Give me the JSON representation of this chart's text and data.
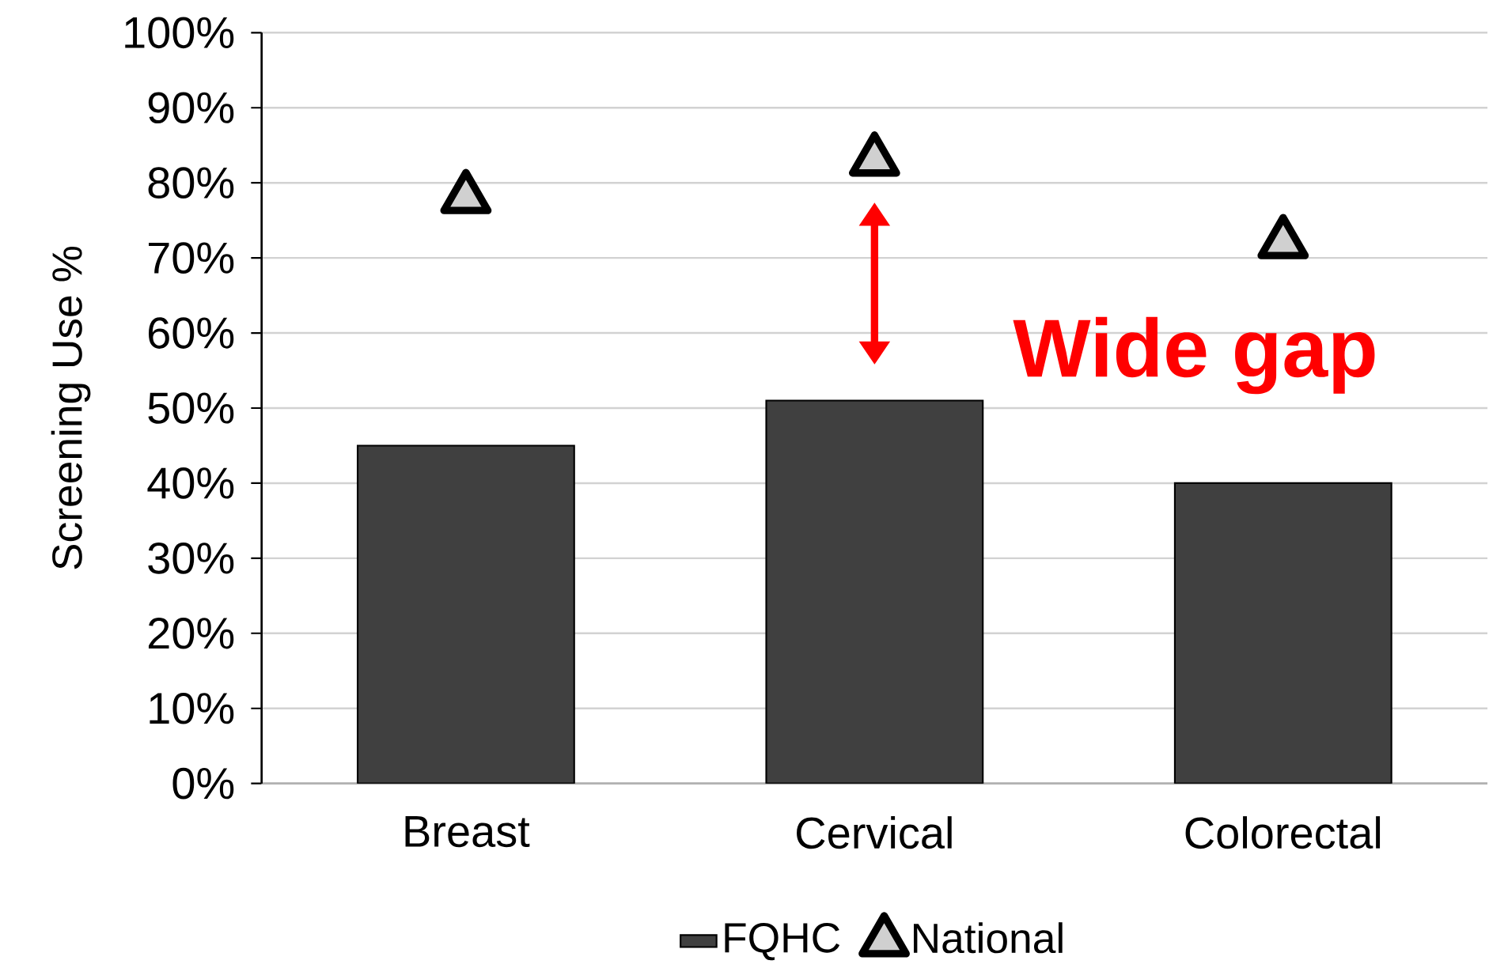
{
  "chart_data": {
    "type": "bar",
    "ylabel": "Screening Use %",
    "categories": [
      "Breast",
      "Cervical",
      "Colorectal"
    ],
    "series": [
      {
        "name": "FQHC",
        "color": "#404040",
        "values": [
          45,
          51,
          40
        ]
      },
      {
        "name": "National",
        "type": "scatter",
        "color": "#d0d0d0",
        "marker": "triangle",
        "values": [
          78,
          83,
          72
        ]
      }
    ],
    "ylim": [
      0,
      100
    ],
    "yticks": [
      {
        "value": 0,
        "label": "0%"
      },
      {
        "value": 10,
        "label": "10%"
      },
      {
        "value": 20,
        "label": "20%"
      },
      {
        "value": 30,
        "label": "30%"
      },
      {
        "value": 40,
        "label": "40%"
      },
      {
        "value": 50,
        "label": "50%"
      },
      {
        "value": 60,
        "label": "60%"
      },
      {
        "value": 70,
        "label": "70%"
      },
      {
        "value": 80,
        "label": "80%"
      },
      {
        "value": 90,
        "label": "90%"
      },
      {
        "value": 100,
        "label": "100%"
      }
    ],
    "grid": "y",
    "legend": "bottom",
    "annotations": [
      "Wide gap"
    ]
  }
}
